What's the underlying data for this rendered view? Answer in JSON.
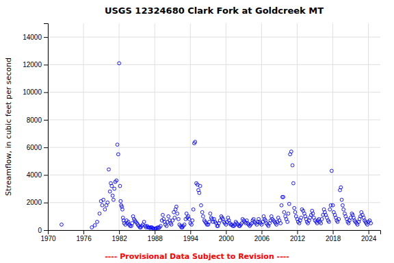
{
  "chart_data": {
    "type": "scatter",
    "title": "USGS 12324680 Clark Fork at Goldcreek MT",
    "ylabel": "Streamflow, in cubic feet per second",
    "annotations": [
      {
        "text": "---- Provisional Data Subject to Revision ----",
        "color": "#ff0000"
      }
    ],
    "color": "#0000ff",
    "marker": "open-circle",
    "grid": true,
    "xlim": [
      1970,
      2026
    ],
    "ylim": [
      0,
      15000
    ],
    "xticks": [
      1970,
      1976,
      1982,
      1988,
      1994,
      2000,
      2006,
      2012,
      2018,
      2024
    ],
    "yticks": [
      0,
      2000,
      4000,
      6000,
      8000,
      10000,
      12000,
      14000
    ],
    "x": [
      1972.3,
      1977.4,
      1977.9,
      1978.3,
      1978.7,
      1978.95,
      1979.15,
      1979.35,
      1979.6,
      1979.85,
      1980.05,
      1980.25,
      1980.45,
      1980.6,
      1980.75,
      1980.9,
      1981.05,
      1981.2,
      1981.35,
      1981.55,
      1981.7,
      1981.85,
      1982.0,
      1982.15,
      1982.25,
      1982.35,
      1982.45,
      1982.55,
      1982.65,
      1982.75,
      1982.85,
      1983.05,
      1983.25,
      1983.4,
      1983.55,
      1983.7,
      1983.85,
      1984.05,
      1984.2,
      1984.35,
      1984.5,
      1984.65,
      1984.8,
      1985.0,
      1985.15,
      1985.3,
      1985.5,
      1985.65,
      1985.8,
      1986.0,
      1986.2,
      1986.4,
      1986.55,
      1986.7,
      1986.85,
      1987.05,
      1987.2,
      1987.35,
      1987.5,
      1987.65,
      1987.8,
      1988.0,
      1988.15,
      1988.3,
      1988.5,
      1988.65,
      1988.8,
      1989.0,
      1989.2,
      1989.35,
      1989.5,
      1989.65,
      1989.8,
      1990.0,
      1990.15,
      1990.3,
      1990.5,
      1990.65,
      1990.8,
      1991.0,
      1991.2,
      1991.35,
      1991.5,
      1991.65,
      1991.8,
      1992.0,
      1992.15,
      1992.35,
      1992.5,
      1992.65,
      1992.8,
      1993.0,
      1993.2,
      1993.35,
      1993.5,
      1993.65,
      1993.8,
      1994.0,
      1994.2,
      1994.35,
      1994.5,
      1994.65,
      1994.8,
      1995.0,
      1995.2,
      1995.35,
      1995.5,
      1995.65,
      1995.8,
      1996.0,
      1996.15,
      1996.35,
      1996.5,
      1996.65,
      1996.8,
      1997.0,
      1997.2,
      1997.35,
      1997.5,
      1997.65,
      1997.8,
      1998.0,
      1998.15,
      1998.35,
      1998.5,
      1998.65,
      1998.8,
      1999.0,
      1999.2,
      1999.35,
      1999.5,
      1999.65,
      1999.8,
      2000.0,
      2000.2,
      2000.35,
      2000.5,
      2000.65,
      2000.8,
      2001.0,
      2001.15,
      2001.35,
      2001.5,
      2001.65,
      2001.8,
      2002.0,
      2002.2,
      2002.35,
      2002.5,
      2002.65,
      2002.8,
      2003.0,
      2003.2,
      2003.35,
      2003.5,
      2003.65,
      2003.8,
      2004.0,
      2004.15,
      2004.35,
      2004.5,
      2004.65,
      2004.8,
      2005.0,
      2005.2,
      2005.35,
      2005.5,
      2005.65,
      2005.8,
      2006.0,
      2006.2,
      2006.35,
      2006.5,
      2006.65,
      2006.8,
      2007.0,
      2007.15,
      2007.35,
      2007.5,
      2007.65,
      2007.8,
      2008.0,
      2008.2,
      2008.35,
      2008.5,
      2008.65,
      2008.8,
      2009.0,
      2009.2,
      2009.35,
      2009.5,
      2009.65,
      2009.8,
      2010.0,
      2010.15,
      2010.35,
      2010.5,
      2010.65,
      2010.8,
      2011.0,
      2011.2,
      2011.35,
      2011.5,
      2011.65,
      2011.8,
      2012.0,
      2012.15,
      2012.35,
      2012.5,
      2012.65,
      2012.8,
      2013.0,
      2013.2,
      2013.35,
      2013.5,
      2013.65,
      2013.8,
      2014.0,
      2014.15,
      2014.35,
      2014.5,
      2014.65,
      2014.8,
      2015.0,
      2015.2,
      2015.35,
      2015.5,
      2015.65,
      2015.8,
      2016.0,
      2016.15,
      2016.35,
      2016.5,
      2016.65,
      2016.8,
      2017.0,
      2017.2,
      2017.35,
      2017.5,
      2017.65,
      2017.8,
      2018.0,
      2018.15,
      2018.35,
      2018.5,
      2018.65,
      2018.8,
      2019.0,
      2019.2,
      2019.35,
      2019.5,
      2019.65,
      2019.8,
      2020.0,
      2020.15,
      2020.35,
      2020.5,
      2020.65,
      2020.8,
      2021.0,
      2021.2,
      2021.35,
      2021.5,
      2021.65,
      2021.8,
      2022.0,
      2022.15,
      2022.35,
      2022.5,
      2022.65,
      2022.8,
      2023.0,
      2023.2,
      2023.35,
      2023.5,
      2023.65,
      2023.8,
      2024.0,
      2024.2,
      2024.4
    ],
    "values": [
      400,
      200,
      350,
      600,
      1200,
      2100,
      1800,
      2200,
      1500,
      1800,
      2000,
      4400,
      2800,
      3400,
      3200,
      2500,
      2200,
      3000,
      3500,
      3600,
      6200,
      5500,
      12100,
      3200,
      2100,
      1800,
      1700,
      1500,
      900,
      700,
      500,
      400,
      700,
      500,
      600,
      400,
      300,
      300,
      500,
      1000,
      800,
      700,
      600,
      500,
      400,
      300,
      200,
      200,
      300,
      400,
      600,
      300,
      200,
      300,
      200,
      200,
      150,
      200,
      200,
      150,
      100,
      100,
      100,
      150,
      200,
      150,
      200,
      300,
      700,
      1100,
      800,
      600,
      400,
      300,
      600,
      1000,
      700,
      500,
      400,
      700,
      1300,
      900,
      1500,
      1700,
      1200,
      800,
      400,
      300,
      200,
      200,
      300,
      400,
      800,
      1200,
      900,
      1000,
      800,
      500,
      400,
      700,
      1500,
      6300,
      6400,
      3400,
      3300,
      2900,
      2700,
      3200,
      1800,
      1300,
      1000,
      700,
      600,
      500,
      400,
      400,
      600,
      1200,
      900,
      800,
      600,
      800,
      600,
      500,
      300,
      300,
      500,
      700,
      1000,
      900,
      800,
      600,
      500,
      400,
      600,
      900,
      700,
      500,
      400,
      400,
      300,
      300,
      400,
      600,
      500,
      400,
      300,
      300,
      400,
      500,
      800,
      700,
      600,
      500,
      700,
      500,
      400,
      300,
      400,
      500,
      700,
      800,
      600,
      500,
      400,
      600,
      800,
      600,
      500,
      400,
      600,
      1000,
      800,
      700,
      500,
      400,
      300,
      500,
      700,
      1000,
      800,
      700,
      600,
      500,
      400,
      600,
      900,
      700,
      500,
      1800,
      2400,
      2400,
      1300,
      1000,
      800,
      600,
      1200,
      1900,
      5500,
      5700,
      4700,
      3400,
      1600,
      1300,
      1000,
      800,
      600,
      500,
      700,
      900,
      1500,
      1400,
      1200,
      1000,
      800,
      600,
      500,
      700,
      900,
      1100,
      1400,
      1200,
      900,
      700,
      600,
      500,
      700,
      800,
      600,
      500,
      800,
      1100,
      1500,
      1300,
      1100,
      900,
      700,
      600,
      1500,
      1800,
      4300,
      1800,
      1300,
      1100,
      900,
      700,
      600,
      800,
      2900,
      3100,
      2200,
      1800,
      1500,
      1200,
      1000,
      800,
      600,
      500,
      700,
      900,
      1200,
      1100,
      900,
      700,
      600,
      500,
      400,
      600,
      800,
      1000,
      1300,
      1100,
      900,
      700,
      600,
      500,
      400,
      600,
      700,
      500
    ]
  }
}
